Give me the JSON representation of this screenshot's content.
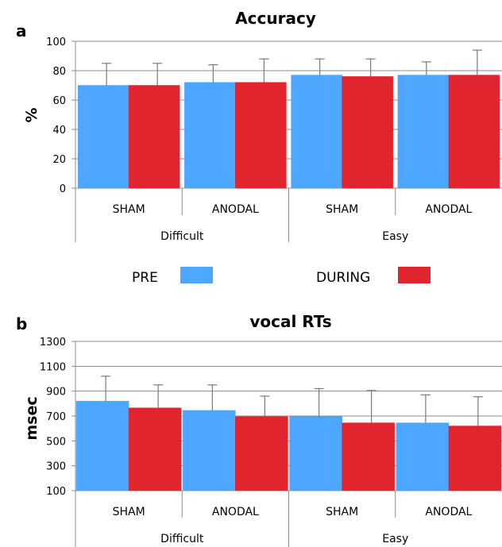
{
  "chart_data": [
    {
      "panel_label": "a",
      "type": "bar",
      "title": "Accuracy",
      "ylabel": "%",
      "xlabel": "",
      "ylim": [
        0,
        100
      ],
      "yticks": [
        0,
        20,
        40,
        60,
        80,
        100
      ],
      "grid": true,
      "categories": [
        "SHAM",
        "ANODAL",
        "SHAM",
        "ANODAL"
      ],
      "groups": [
        {
          "label": "Difficult",
          "span": 2
        },
        {
          "label": "Easy",
          "span": 2
        }
      ],
      "series": [
        {
          "name": "PRE",
          "color": "#4da6ff",
          "values": [
            70,
            72,
            77,
            77
          ],
          "errors": [
            15,
            12,
            11,
            9
          ]
        },
        {
          "name": "DURING",
          "color": "#e0252e",
          "values": [
            70,
            72,
            76,
            77
          ],
          "errors": [
            15,
            16,
            12,
            17
          ]
        }
      ],
      "legend": {
        "position": "bottom"
      }
    },
    {
      "panel_label": "b",
      "type": "bar",
      "title": "vocal RTs",
      "ylabel": "msec",
      "xlabel": "",
      "ylim": [
        100,
        1300
      ],
      "yticks": [
        100,
        300,
        500,
        700,
        900,
        1100,
        1300
      ],
      "grid": true,
      "categories": [
        "SHAM",
        "ANODAL",
        "SHAM",
        "ANODAL"
      ],
      "groups": [
        {
          "label": "Difficult",
          "span": 2
        },
        {
          "label": "Easy",
          "span": 2
        }
      ],
      "series": [
        {
          "name": "PRE",
          "color": "#4da6ff",
          "values": [
            820,
            745,
            695,
            645
          ],
          "errors": [
            200,
            205,
            225,
            225
          ]
        },
        {
          "name": "DURING",
          "color": "#e0252e",
          "values": [
            765,
            695,
            645,
            620
          ],
          "errors": [
            185,
            165,
            260,
            235
          ]
        }
      ]
    }
  ]
}
